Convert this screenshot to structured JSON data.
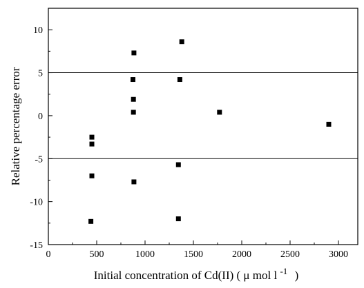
{
  "chart_data": {
    "type": "scatter",
    "title": "",
    "xlabel": "Initial concentration of Cd(II) ( μ mol l",
    "xlabel_superscript": "-1",
    "xlabel_suffix": ")",
    "ylabel": "Relative percentage error",
    "xlim": [
      0,
      3200
    ],
    "ylim": [
      -15,
      12.5
    ],
    "xticks": [
      0,
      500,
      1000,
      1500,
      2000,
      2500,
      3000
    ],
    "xtick_labels": [
      "0",
      "500",
      "1000",
      "1500",
      "2000",
      "2500",
      "3000"
    ],
    "yticks": [
      -15,
      -10,
      -5,
      0,
      5,
      10
    ],
    "ytick_labels": [
      "-15",
      "-10",
      "-5",
      "0",
      "5",
      "10"
    ],
    "reference_lines": [
      5,
      -5
    ],
    "grid": false,
    "legend": "none",
    "marker": "square",
    "marker_color": "#000000",
    "points": [
      {
        "x": 450,
        "y": -2.5
      },
      {
        "x": 450,
        "y": -3.3
      },
      {
        "x": 450,
        "y": -7.0
      },
      {
        "x": 440,
        "y": -12.3
      },
      {
        "x": 885,
        "y": 7.3
      },
      {
        "x": 875,
        "y": 4.2
      },
      {
        "x": 880,
        "y": 1.9
      },
      {
        "x": 880,
        "y": 0.4
      },
      {
        "x": 885,
        "y": -7.7
      },
      {
        "x": 1380,
        "y": 8.6
      },
      {
        "x": 1360,
        "y": 4.2
      },
      {
        "x": 1345,
        "y": -5.7
      },
      {
        "x": 1345,
        "y": -12.0
      },
      {
        "x": 1770,
        "y": 0.4
      },
      {
        "x": 2900,
        "y": -1.0
      }
    ]
  }
}
